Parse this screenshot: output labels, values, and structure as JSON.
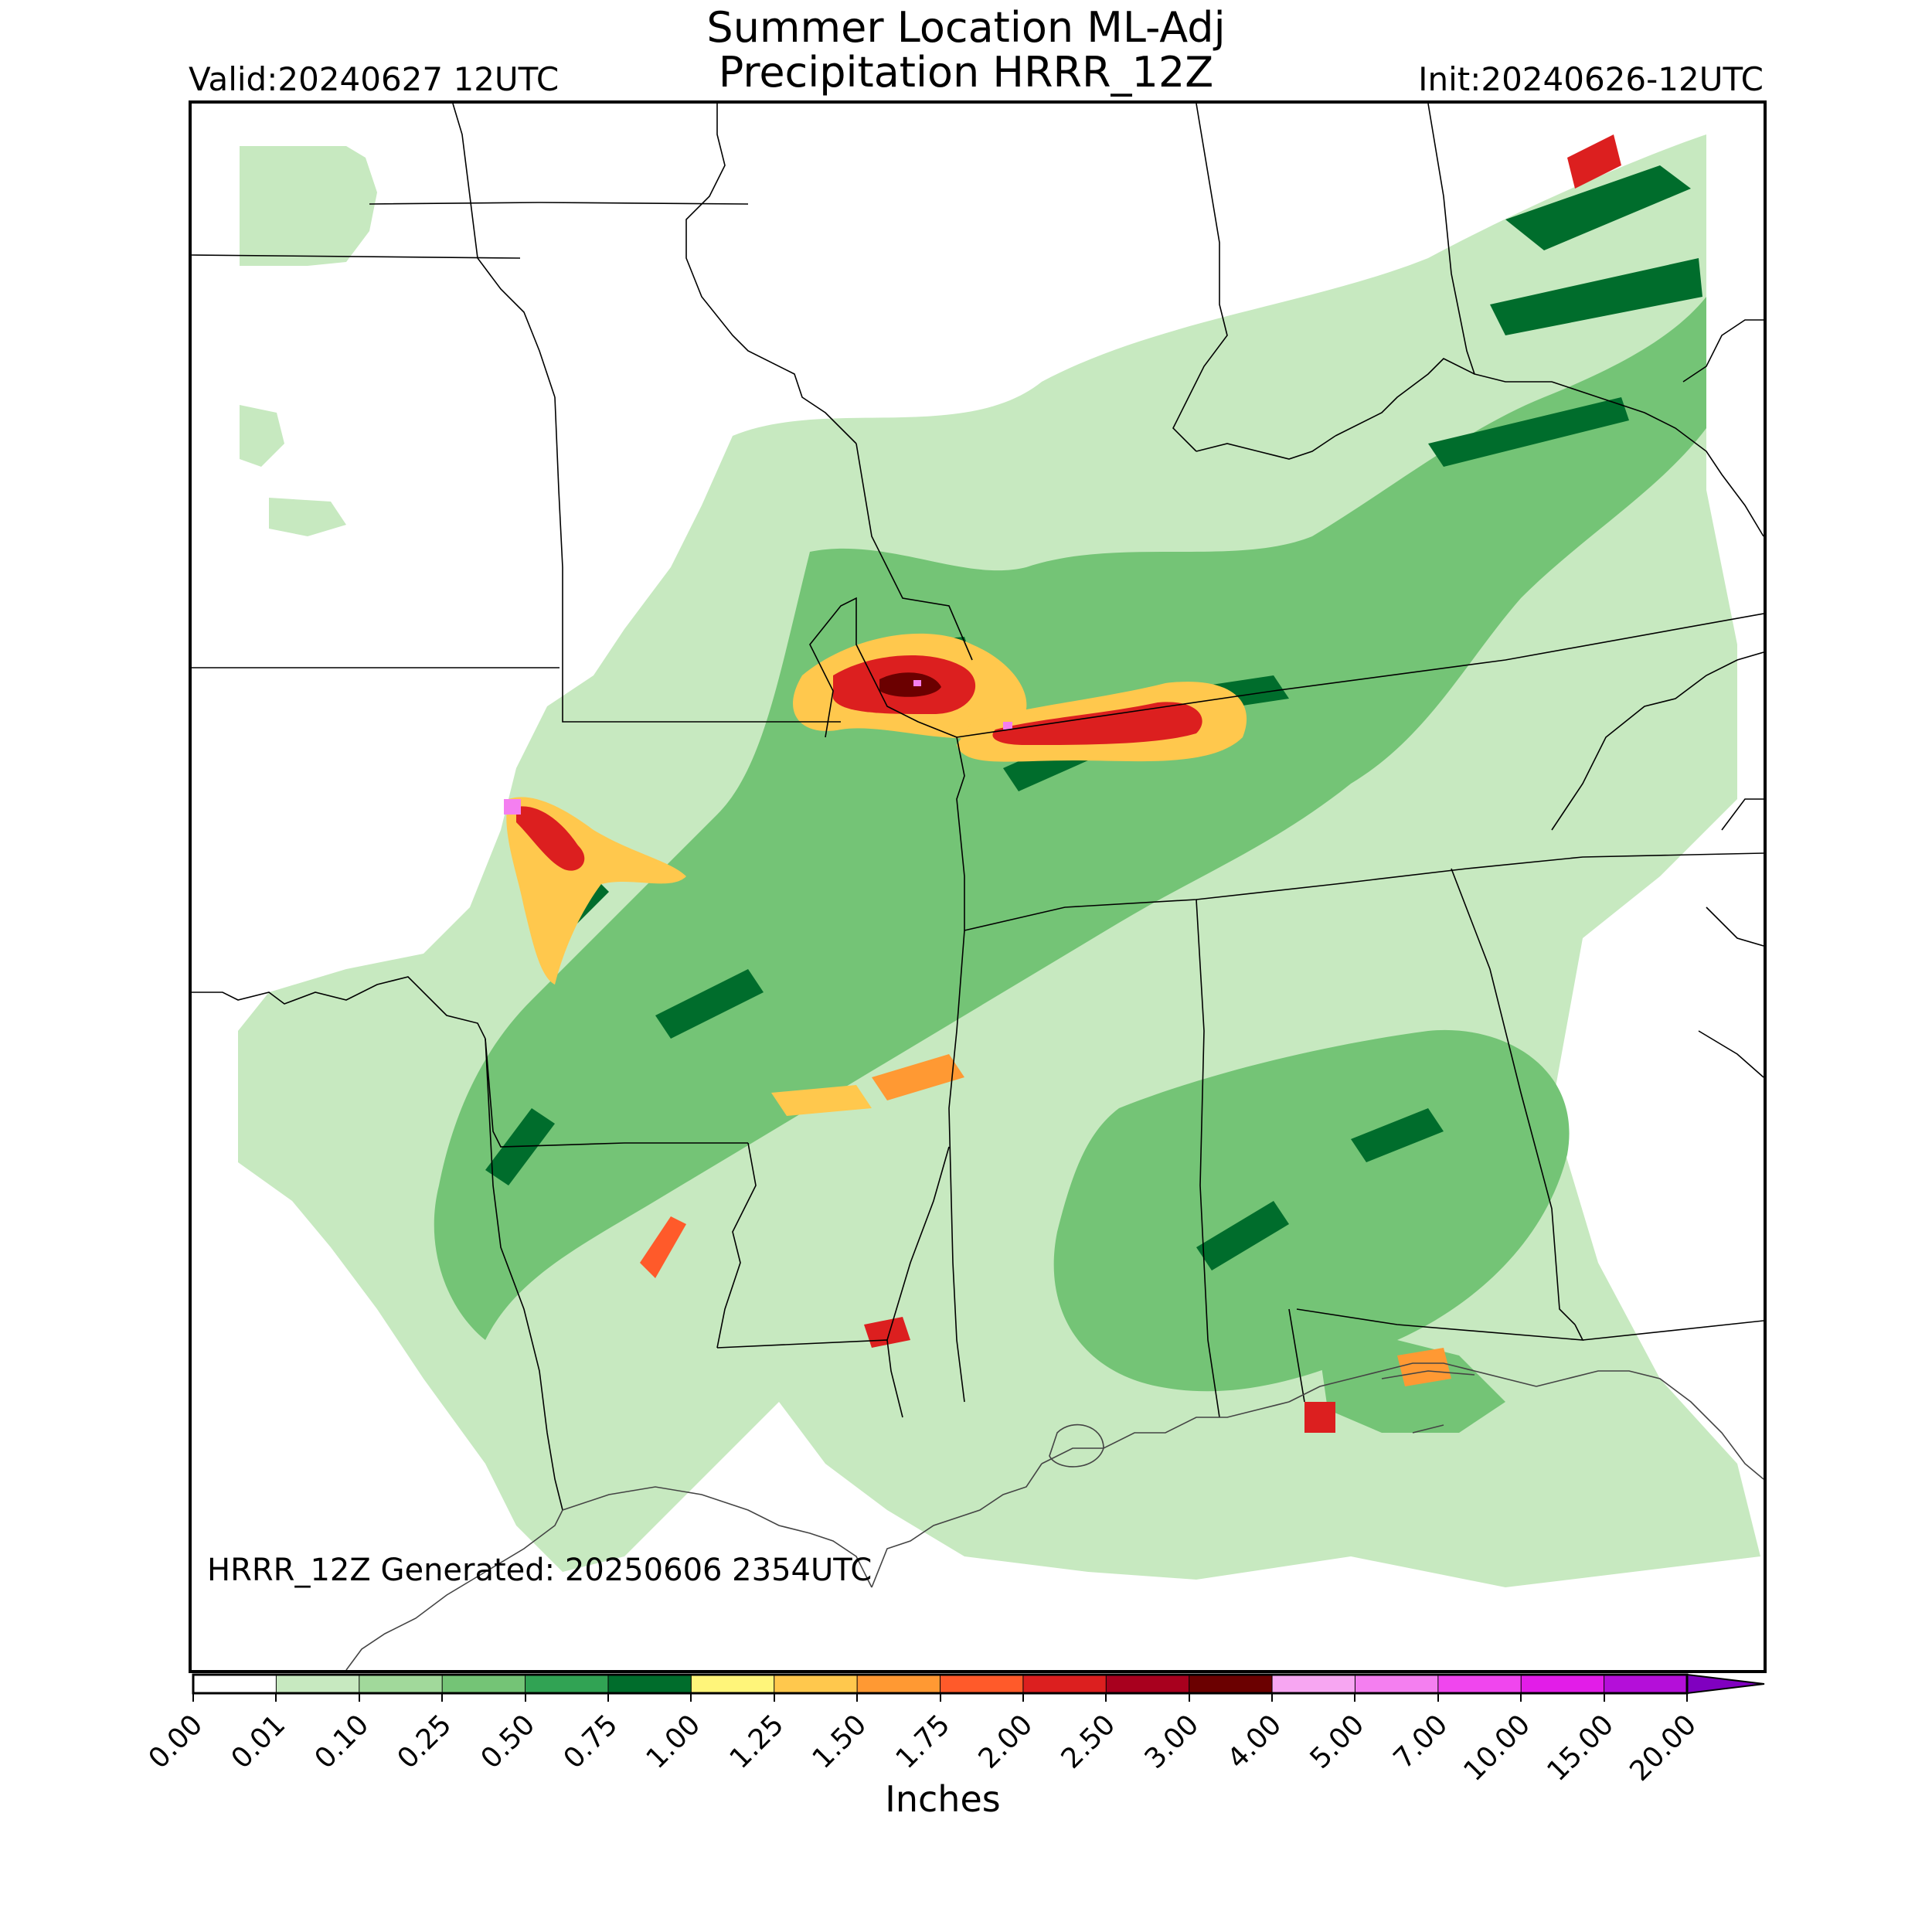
{
  "header": {
    "title_line1": "Summer Location ML-Adj",
    "title_line2": "Precipitation HRRR_12Z",
    "valid": "Valid:20240627 12UTC",
    "init": "Init:20240626-12UTC"
  },
  "footer": {
    "generated": "HRRR_12Z Generated: 20250606 2354UTC"
  },
  "colorbar": {
    "label": "Inches",
    "ticks": [
      "0.00",
      "0.01",
      "0.10",
      "0.25",
      "0.50",
      "0.75",
      "1.00",
      "1.25",
      "1.50",
      "1.75",
      "2.00",
      "2.50",
      "3.00",
      "4.00",
      "5.00",
      "7.00",
      "10.00",
      "15.00",
      "20.00"
    ],
    "colors": [
      "#ffffff",
      "#c7e9c0",
      "#a1d99b",
      "#74c476",
      "#31a354",
      "#006d2c",
      "#fff57a",
      "#ffc84d",
      "#ff9933",
      "#ff5a2a",
      "#dc1f1f",
      "#a8001e",
      "#6b0000",
      "#f7a6f2",
      "#f47ff0",
      "#f046ee",
      "#e21de8",
      "#b40fd9"
    ],
    "extend_color": "#8000c0"
  },
  "map": {
    "precip_levels": {
      "light": "#c7e9c0",
      "light2": "#a1d99b",
      "mod": "#74c476",
      "mod2": "#31a354",
      "heavy": "#006d2c",
      "y1": "#fff57a",
      "y2": "#ffc84d",
      "o1": "#ff9933",
      "r1": "#ff5a2a",
      "r2": "#dc1f1f",
      "r3": "#a8001e",
      "dr": "#6b0000",
      "pk": "#f47ff0"
    }
  }
}
